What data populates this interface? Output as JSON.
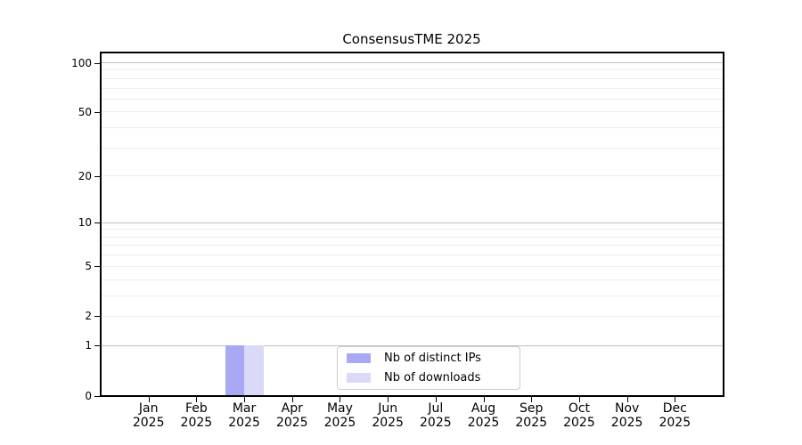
{
  "chart_data": {
    "type": "bar",
    "title": "ConsensusTME 2025",
    "categories": [
      "Jan",
      "Feb",
      "Mar",
      "Apr",
      "May",
      "Jun",
      "Jul",
      "Aug",
      "Sep",
      "Oct",
      "Nov",
      "Dec"
    ],
    "year": "2025",
    "series": [
      {
        "name": "Nb of distinct IPs",
        "color": "#a8a8f4",
        "values": [
          0,
          0,
          1,
          0,
          0,
          0,
          0,
          0,
          0,
          0,
          0,
          0
        ]
      },
      {
        "name": "Nb of downloads",
        "color": "#dadaf8",
        "values": [
          0,
          0,
          1,
          0,
          0,
          0,
          0,
          0,
          0,
          0,
          0,
          0
        ]
      }
    ],
    "y_axis": {
      "scale": "log1p",
      "tick_values": [
        0,
        1,
        2,
        5,
        10,
        20,
        50,
        100
      ],
      "major_gridlines": [
        1,
        10,
        100
      ],
      "minor_gridlines": [
        2,
        3,
        4,
        5,
        6,
        7,
        8,
        9,
        20,
        30,
        40,
        50,
        60,
        70,
        80,
        90
      ],
      "range": [
        0,
        115
      ]
    },
    "legend": {
      "position": "lower center",
      "items": [
        {
          "label": "Nb of distinct IPs"
        },
        {
          "label": "Nb of downloads"
        }
      ]
    },
    "grid": true
  },
  "colors": {
    "background": "#ffffff",
    "spine": "#000000",
    "major_grid": "#c2c2c2",
    "minor_grid": "#ededed",
    "bar_distinct_ips": "#a8a8f4",
    "bar_downloads": "#dadaf8",
    "legend_border": "#cccccc"
  }
}
